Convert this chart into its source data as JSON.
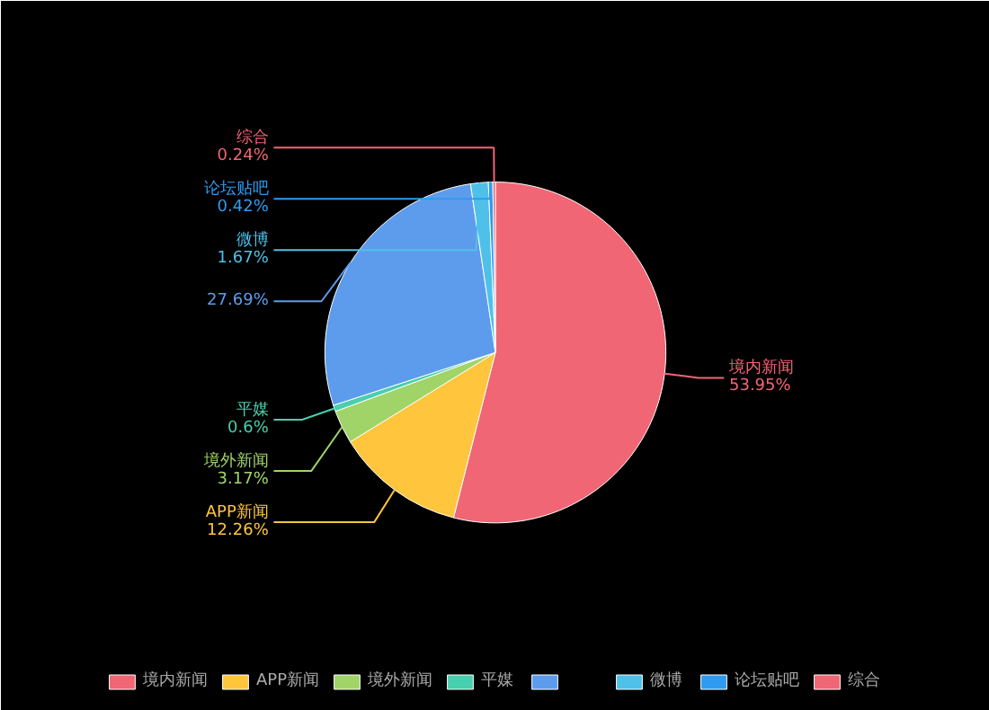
{
  "chart_data": {
    "type": "pie",
    "categories": [
      "境内新闻",
      "APP新闻",
      "境外新闻",
      "平媒",
      null,
      "微博",
      "论坛贴吧",
      "综合"
    ],
    "values": [
      53.95,
      12.26,
      3.17,
      0.6,
      27.69,
      1.67,
      0.42,
      0.24
    ],
    "value_labels": [
      "53.95%",
      "12.26%",
      "3.17%",
      "0.6%",
      "27.69%",
      "1.67%",
      "0.42%",
      "0.24%"
    ],
    "colors": [
      "#f06674",
      "#ffc53d",
      "#a0d468",
      "#48cfad",
      "#5d9cec",
      "#4fc1e9",
      "#2f9bf0",
      "#f06674"
    ],
    "legend": "bottom"
  }
}
